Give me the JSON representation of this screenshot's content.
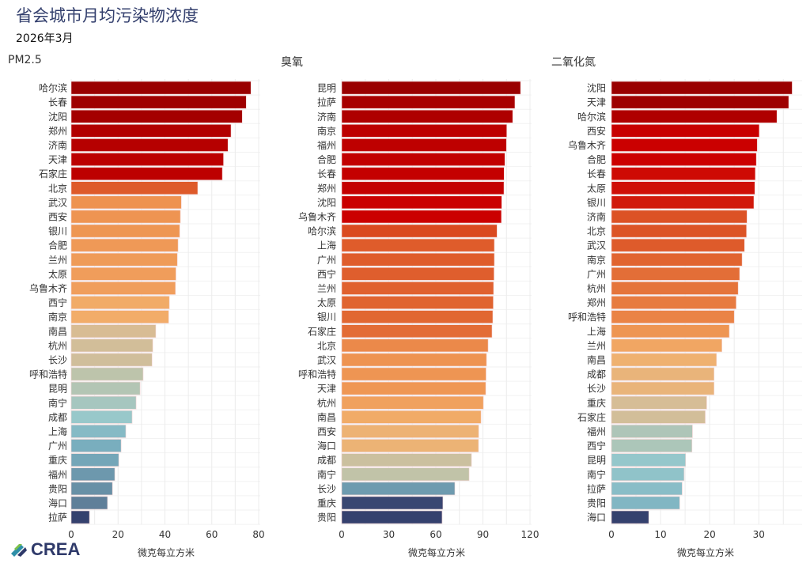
{
  "header": {
    "title": "省会城市月均污染物浓度",
    "subtitle": "2026年3月"
  },
  "logo": {
    "text": "CREA"
  },
  "color_scale": [
    [
      0,
      "#35416e"
    ],
    [
      0.11,
      "#5e7e98"
    ],
    [
      0.2,
      "#7ab0c0"
    ],
    [
      0.26,
      "#96c8cc"
    ],
    [
      0.33,
      "#bcc4ac"
    ],
    [
      0.41,
      "#d8bc94"
    ],
    [
      0.48,
      "#f2b06c"
    ],
    [
      0.57,
      "#ee9250"
    ],
    [
      0.64,
      "#e26a34"
    ],
    [
      0.7,
      "#da4a20"
    ],
    [
      0.75,
      "#cc0000"
    ],
    [
      0.85,
      "#b80000"
    ],
    [
      1,
      "#990000"
    ]
  ],
  "chart_data": [
    {
      "type": "bar",
      "orientation": "horizontal",
      "title": "PM2.5",
      "xlabel": "微克每立方米",
      "xlim": [
        0,
        80
      ],
      "ticks": [
        0,
        20,
        40,
        60,
        80
      ],
      "categories": [
        "哈尔滨",
        "长春",
        "沈阳",
        "郑州",
        "济南",
        "天津",
        "石家庄",
        "北京",
        "武汉",
        "西安",
        "银川",
        "合肥",
        "兰州",
        "太原",
        "乌鲁木齐",
        "西宁",
        "南京",
        "南昌",
        "杭州",
        "长沙",
        "呼和浩特",
        "昆明",
        "南宁",
        "成都",
        "上海",
        "广州",
        "重庆",
        "福州",
        "贵阳",
        "海口",
        "拉萨"
      ],
      "values": [
        76.7,
        74.7,
        73.0,
        68.2,
        66.9,
        65.0,
        64.5,
        54.0,
        47.0,
        46.6,
        46.3,
        45.6,
        45.3,
        44.7,
        44.5,
        41.9,
        41.6,
        36.1,
        34.8,
        34.5,
        30.7,
        29.4,
        27.7,
        26.0,
        23.3,
        21.3,
        20.3,
        18.6,
        17.6,
        15.5,
        7.8
      ]
    },
    {
      "type": "bar",
      "orientation": "horizontal",
      "title": "臭氧",
      "xlabel": "微克每立方米",
      "xlim": [
        0,
        120
      ],
      "ticks": [
        0,
        30,
        60,
        90,
        120
      ],
      "categories": [
        "昆明",
        "拉萨",
        "济南",
        "南京",
        "福州",
        "合肥",
        "长春",
        "郑州",
        "沈阳",
        "乌鲁木齐",
        "哈尔滨",
        "上海",
        "广州",
        "西宁",
        "兰州",
        "太原",
        "银川",
        "石家庄",
        "北京",
        "武汉",
        "呼和浩特",
        "天津",
        "杭州",
        "南昌",
        "西安",
        "海口",
        "成都",
        "南宁",
        "长沙",
        "重庆",
        "贵阳"
      ],
      "values": [
        114.0,
        110.4,
        109.0,
        105.2,
        105.0,
        104.0,
        103.5,
        103.4,
        102.0,
        101.8,
        99.0,
        97.3,
        97.3,
        97.1,
        96.8,
        96.6,
        96.3,
        95.8,
        93.3,
        92.3,
        92.0,
        91.8,
        90.3,
        88.8,
        87.3,
        87.2,
        82.7,
        81.2,
        72.1,
        64.5,
        64.0
      ]
    },
    {
      "type": "bar",
      "orientation": "horizontal",
      "title": "二氧化氮",
      "xlabel": "微克每立方米",
      "xlim": [
        0,
        38.5
      ],
      "ticks": [
        0,
        10,
        20,
        30
      ],
      "categories": [
        "沈阳",
        "天津",
        "哈尔滨",
        "西安",
        "乌鲁木齐",
        "合肥",
        "长春",
        "太原",
        "银川",
        "济南",
        "北京",
        "武汉",
        "南京",
        "广州",
        "杭州",
        "郑州",
        "呼和浩特",
        "上海",
        "兰州",
        "南昌",
        "成都",
        "长沙",
        "重庆",
        "石家庄",
        "福州",
        "西宁",
        "昆明",
        "南宁",
        "拉萨",
        "贵阳",
        "海口"
      ],
      "values": [
        36.8,
        36.1,
        33.7,
        30.1,
        29.7,
        29.5,
        29.3,
        29.2,
        29.0,
        27.6,
        27.5,
        27.1,
        26.6,
        26.1,
        25.8,
        25.4,
        25.0,
        24.0,
        22.5,
        21.4,
        20.9,
        20.9,
        19.4,
        19.1,
        16.5,
        16.4,
        15.1,
        14.8,
        14.4,
        13.9,
        7.6
      ]
    }
  ]
}
